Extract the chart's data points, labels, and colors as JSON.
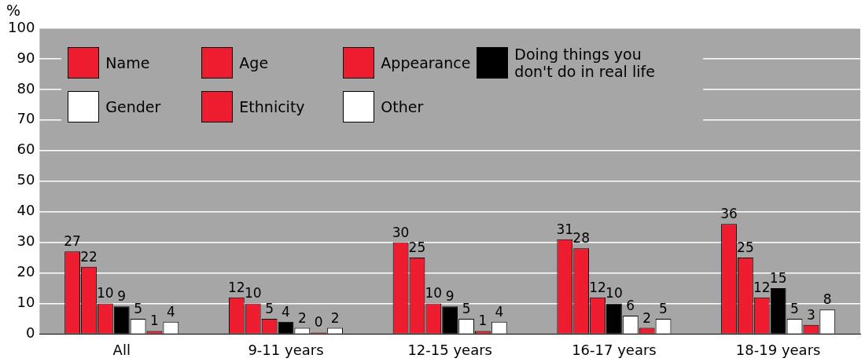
{
  "chart_data": {
    "type": "bar",
    "ylabel": "%",
    "categories": [
      "All",
      "9-11 years",
      "12-15 years",
      "16-17 years",
      "18-19 years"
    ],
    "series": [
      {
        "name": "Name",
        "color": "#ed1c2e",
        "values": [
          27,
          12,
          30,
          31,
          36
        ]
      },
      {
        "name": "Age",
        "color": "#ed1c2e",
        "values": [
          22,
          10,
          25,
          28,
          25
        ]
      },
      {
        "name": "Appearance",
        "color": "#ed1c2e",
        "values": [
          10,
          5,
          10,
          12,
          12
        ]
      },
      {
        "name": "Doing things you don't do in real life",
        "color": "#000000",
        "values": [
          9,
          4,
          9,
          10,
          15
        ]
      },
      {
        "name": "Gender",
        "color": "#ffffff",
        "values": [
          5,
          2,
          5,
          6,
          5
        ]
      },
      {
        "name": "Ethnicity",
        "color": "#ed1c2e",
        "values": [
          1,
          0,
          1,
          2,
          3
        ]
      },
      {
        "name": "Other",
        "color": "#ffffff",
        "values": [
          4,
          2,
          4,
          5,
          8
        ]
      }
    ],
    "ylim": [
      0,
      100
    ],
    "yticks": [
      0,
      10,
      20,
      30,
      40,
      50,
      60,
      70,
      80,
      90,
      100
    ],
    "grid": "y",
    "legend": "top left",
    "data_labels": true
  }
}
